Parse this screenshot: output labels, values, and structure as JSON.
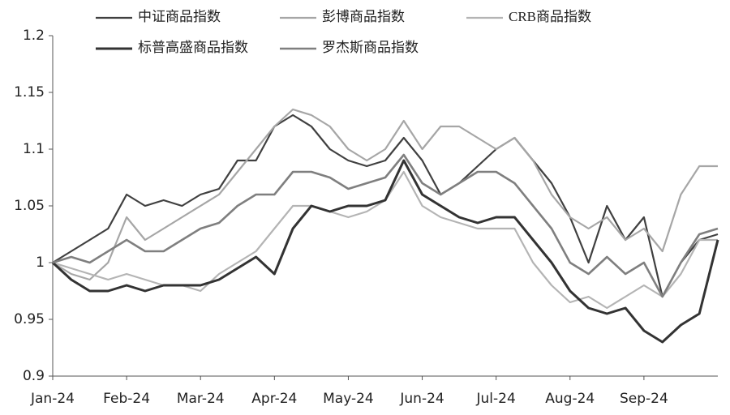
{
  "chart_data": {
    "type": "line",
    "categories": [
      "Jan-24",
      null,
      null,
      null,
      "Feb-24",
      null,
      null,
      null,
      "Mar-24",
      null,
      null,
      null,
      "Apr-24",
      null,
      null,
      null,
      "May-24",
      null,
      null,
      null,
      "Jun-24",
      null,
      null,
      null,
      "Jul-24",
      null,
      null,
      null,
      "Aug-24",
      null,
      null,
      null,
      "Sep-24",
      null,
      null,
      null,
      null
    ],
    "series": [
      {
        "name": "中证商品指数",
        "color": "#404040",
        "width": 2.2,
        "values": [
          1.0,
          1.01,
          1.02,
          1.03,
          1.06,
          1.05,
          1.055,
          1.05,
          1.06,
          1.065,
          1.09,
          1.09,
          1.12,
          1.13,
          1.12,
          1.1,
          1.09,
          1.085,
          1.09,
          1.11,
          1.09,
          1.06,
          1.07,
          1.085,
          1.1,
          1.11,
          1.09,
          1.07,
          1.04,
          1.0,
          1.05,
          1.02,
          1.04,
          0.97,
          1.0,
          1.02,
          1.025
        ]
      },
      {
        "name": "彭博商品指数",
        "color": "#a6a6a6",
        "width": 2.2,
        "values": [
          1.0,
          0.99,
          0.985,
          1.0,
          1.04,
          1.02,
          1.03,
          1.04,
          1.05,
          1.06,
          1.08,
          1.1,
          1.12,
          1.135,
          1.13,
          1.12,
          1.1,
          1.09,
          1.1,
          1.125,
          1.1,
          1.12,
          1.12,
          1.11,
          1.1,
          1.11,
          1.09,
          1.06,
          1.04,
          1.03,
          1.04,
          1.02,
          1.03,
          1.01,
          1.06,
          1.085,
          1.085
        ]
      },
      {
        "name": "CRB商品指数",
        "color": "#b4b4b4",
        "width": 2.2,
        "values": [
          1.0,
          0.995,
          0.99,
          0.985,
          0.99,
          0.985,
          0.98,
          0.98,
          0.975,
          0.99,
          1.0,
          1.01,
          1.03,
          1.05,
          1.05,
          1.045,
          1.04,
          1.045,
          1.055,
          1.08,
          1.05,
          1.04,
          1.035,
          1.03,
          1.03,
          1.03,
          1.0,
          0.98,
          0.965,
          0.97,
          0.96,
          0.97,
          0.98,
          0.97,
          0.99,
          1.02,
          1.02
        ]
      },
      {
        "name": "标普高盛商品指数",
        "color": "#333333",
        "width": 3,
        "values": [
          1.0,
          0.985,
          0.975,
          0.975,
          0.98,
          0.975,
          0.98,
          0.98,
          0.98,
          0.985,
          0.995,
          1.005,
          0.99,
          1.03,
          1.05,
          1.045,
          1.05,
          1.05,
          1.055,
          1.09,
          1.06,
          1.05,
          1.04,
          1.035,
          1.04,
          1.04,
          1.02,
          1.0,
          0.975,
          0.96,
          0.955,
          0.96,
          0.94,
          0.93,
          0.945,
          0.955,
          1.02
        ]
      },
      {
        "name": "罗杰斯商品指数",
        "color": "#7f7f7f",
        "width": 2.6,
        "values": [
          1.0,
          1.005,
          1.0,
          1.01,
          1.02,
          1.01,
          1.01,
          1.02,
          1.03,
          1.035,
          1.05,
          1.06,
          1.06,
          1.08,
          1.08,
          1.075,
          1.065,
          1.07,
          1.075,
          1.095,
          1.07,
          1.06,
          1.07,
          1.08,
          1.08,
          1.07,
          1.05,
          1.03,
          1.0,
          0.99,
          1.005,
          0.99,
          1.0,
          0.97,
          1.0,
          1.025,
          1.03
        ]
      }
    ],
    "ylim": [
      0.9,
      1.2
    ],
    "yticks": [
      0.9,
      0.95,
      1,
      1.05,
      1.1,
      1.15,
      1.2
    ]
  }
}
